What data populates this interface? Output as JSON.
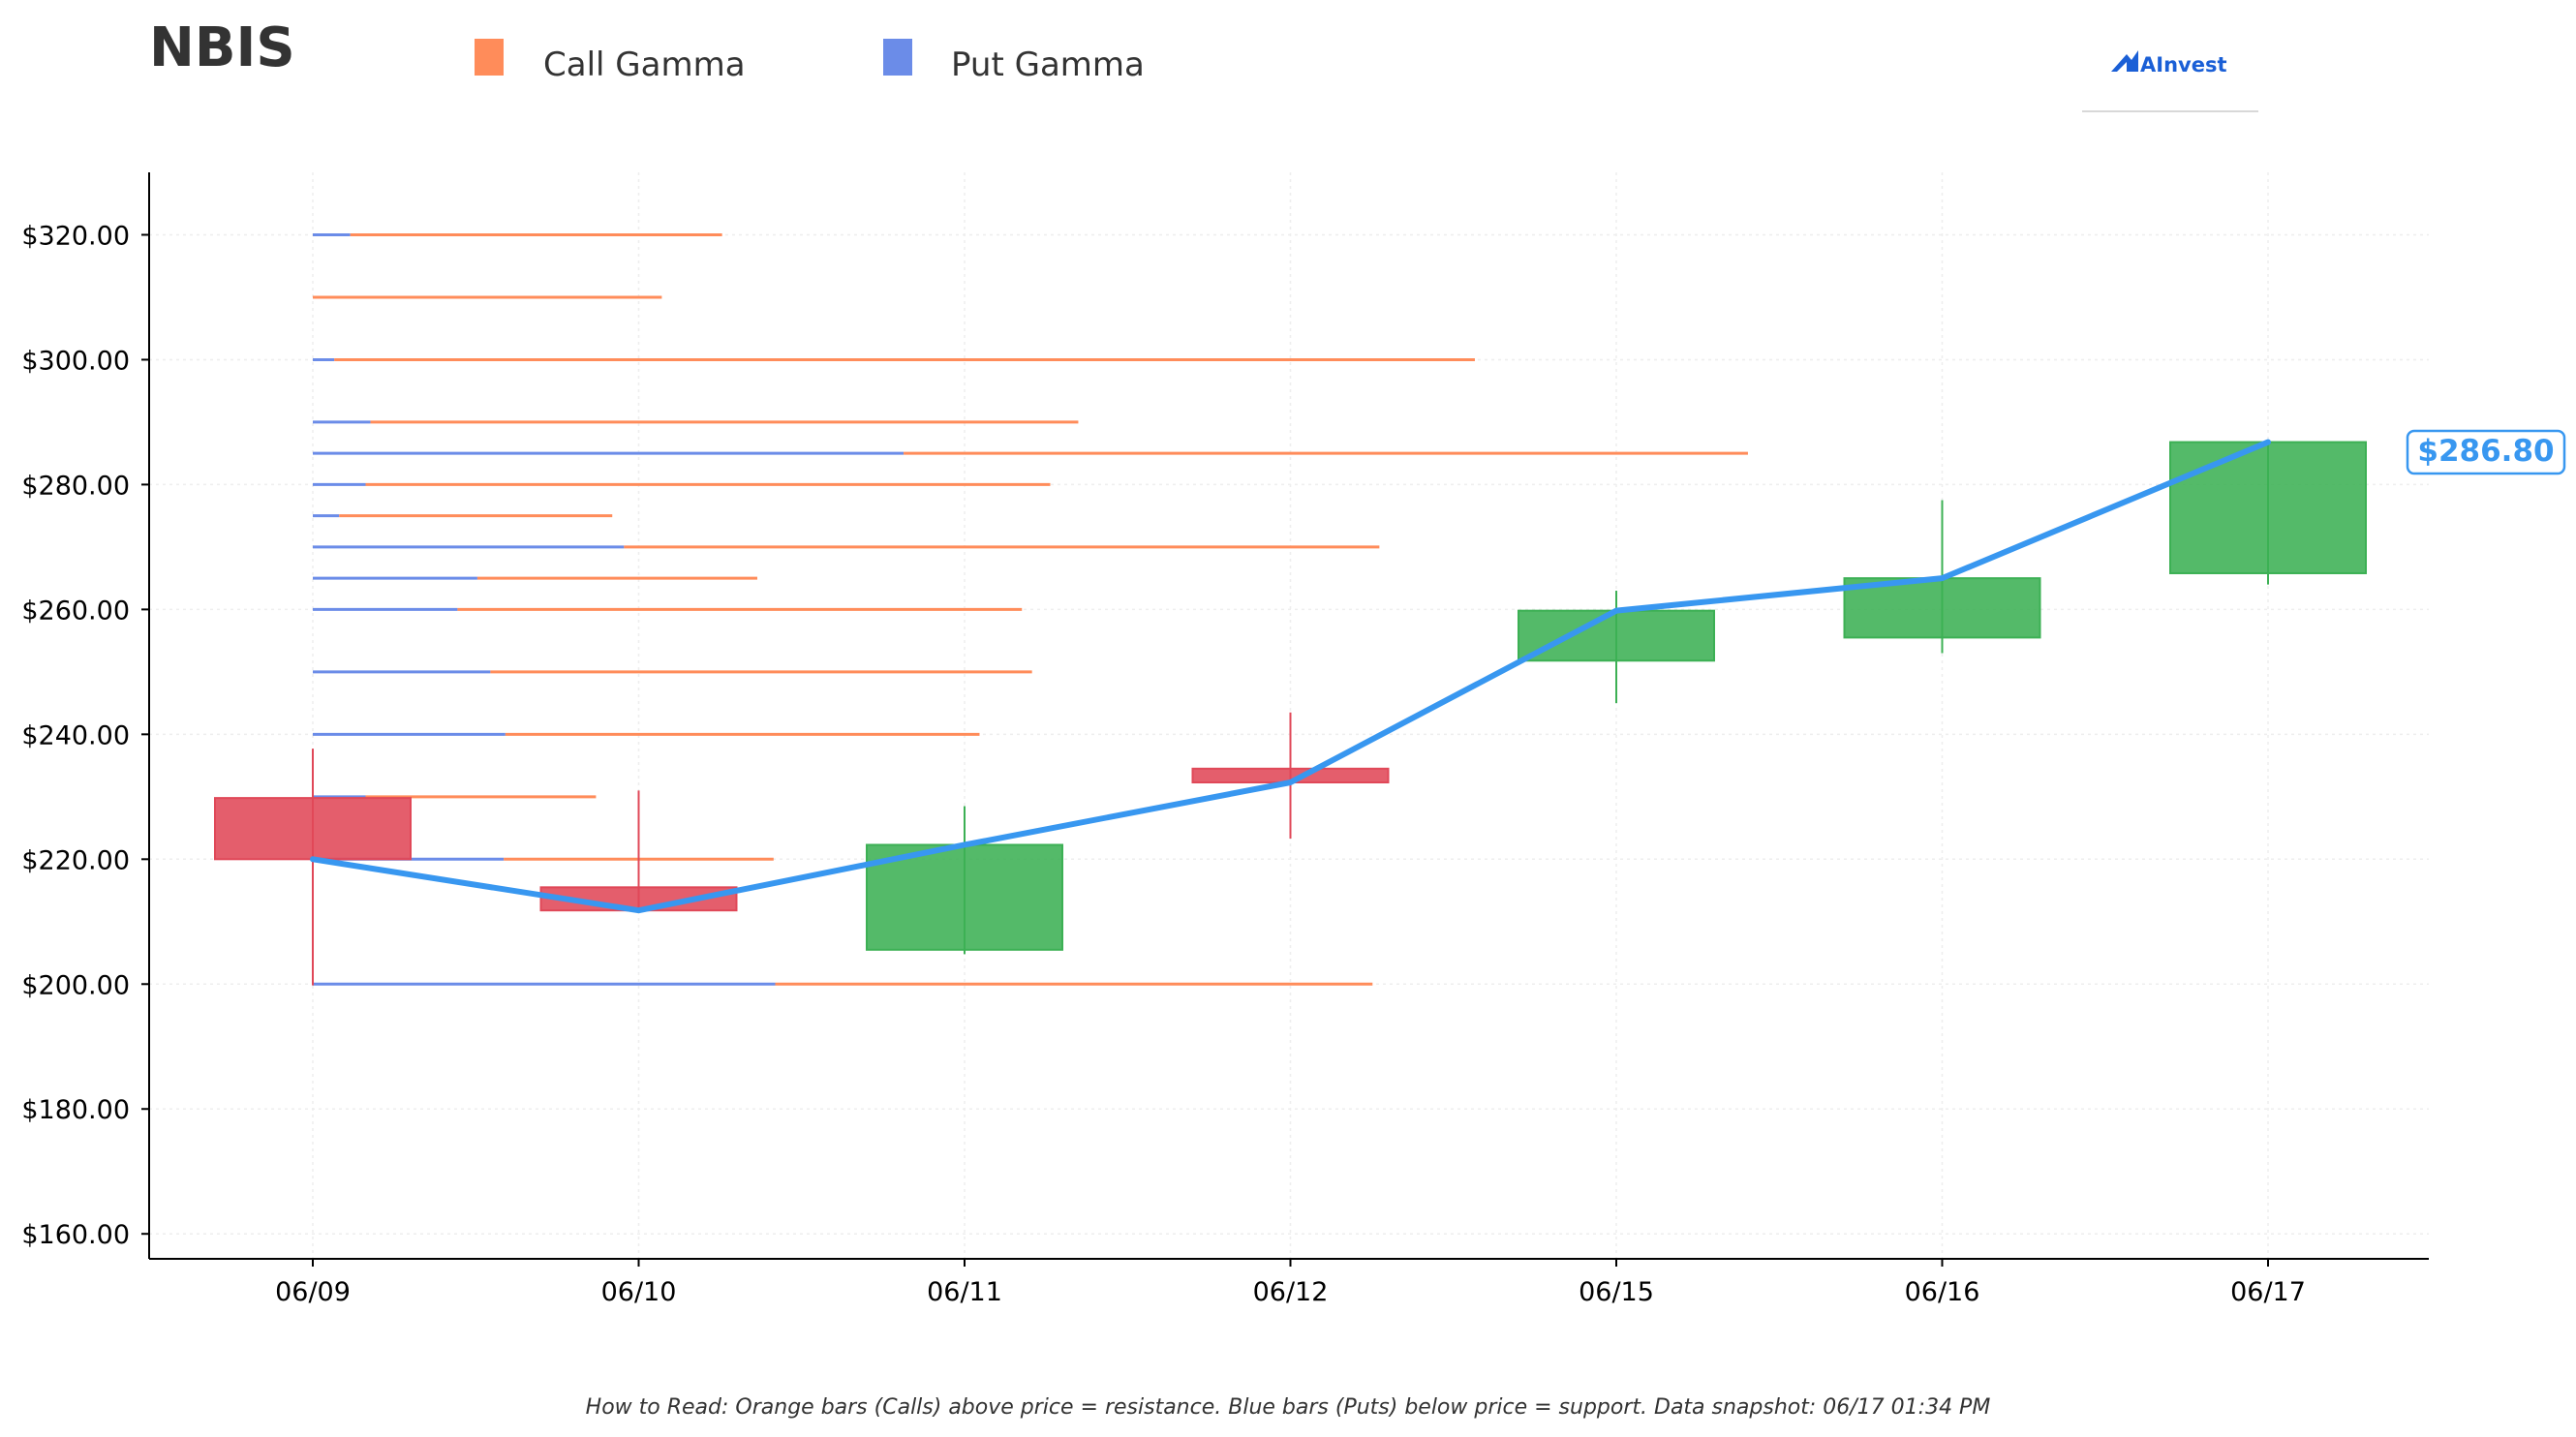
{
  "title": "NBIS",
  "legend": [
    {
      "label": "Call Gamma",
      "color": "#FF8C5A"
    },
    {
      "label": "Put Gamma",
      "color": "#6B8CE8"
    }
  ],
  "logo": {
    "text": "AInvest",
    "icon": "ainvest-logo-icon",
    "color": "#1a5fd6"
  },
  "footer": "How to Read: Orange bars (Calls) above price = resistance. Blue bars (Puts) below price = support. Data snapshot: 06/17 01:34 PM",
  "colors": {
    "up": "#3CB054",
    "down": "#E04858",
    "line": "#3897F0",
    "call": "#FF8C5A",
    "put": "#6B8CE8"
  },
  "chart_data": {
    "type": "candlestick",
    "categories": [
      "06/09",
      "06/10",
      "06/11",
      "06/12",
      "06/15",
      "06/16",
      "06/17"
    ],
    "ylim": [
      156,
      330
    ],
    "yticks": [
      160,
      180,
      200,
      220,
      240,
      260,
      280,
      300,
      320
    ],
    "ytick_labels": [
      "$160.00",
      "$180.00",
      "$200.00",
      "$220.00",
      "$240.00",
      "$260.00",
      "$280.00",
      "$300.00",
      "$320.00"
    ],
    "grid": true,
    "legend_position": "top-left",
    "candles": [
      {
        "date": "06/09",
        "open": 229.8,
        "close": 220.0,
        "high": 237.7,
        "low": 199.8
      },
      {
        "date": "06/10",
        "open": 215.5,
        "close": 211.8,
        "high": 231.0,
        "low": 211.8
      },
      {
        "date": "06/11",
        "open": 205.5,
        "close": 222.3,
        "high": 228.5,
        "low": 204.8
      },
      {
        "date": "06/12",
        "open": 234.5,
        "close": 232.3,
        "high": 243.5,
        "low": 223.3
      },
      {
        "date": "06/15",
        "open": 251.8,
        "close": 259.8,
        "high": 263.0,
        "low": 245.0
      },
      {
        "date": "06/16",
        "open": 255.5,
        "close": 265.0,
        "high": 277.5,
        "low": 253.0
      },
      {
        "date": "06/17",
        "open": 265.8,
        "close": 286.8,
        "high": 287.0,
        "low": 264.0
      }
    ],
    "close_line": [
      220.0,
      211.8,
      222.3,
      232.3,
      259.8,
      265.0,
      286.8
    ],
    "last_price_label": "$286.80",
    "gamma_levels": [
      {
        "strike": 320,
        "put": 0.115,
        "call": 1.141
      },
      {
        "strike": 310,
        "put": 0.0,
        "call": 1.071
      },
      {
        "strike": 300,
        "put": 0.066,
        "call": 3.5
      },
      {
        "strike": 290,
        "put": 0.177,
        "call": 2.172
      },
      {
        "strike": 285,
        "put": 1.813,
        "call": 2.591
      },
      {
        "strike": 280,
        "put": 0.162,
        "call": 2.101
      },
      {
        "strike": 275,
        "put": 0.081,
        "call": 0.838
      },
      {
        "strike": 270,
        "put": 0.955,
        "call": 2.318
      },
      {
        "strike": 265,
        "put": 0.505,
        "call": 0.859
      },
      {
        "strike": 260,
        "put": 0.444,
        "call": 1.732
      },
      {
        "strike": 250,
        "put": 0.545,
        "call": 1.662
      },
      {
        "strike": 240,
        "put": 0.591,
        "call": 1.455
      },
      {
        "strike": 230,
        "put": 0.162,
        "call": 0.707
      },
      {
        "strike": 220,
        "put": 0.586,
        "call": 0.828
      },
      {
        "strike": 200,
        "put": 1.419,
        "call": 1.833
      }
    ]
  }
}
